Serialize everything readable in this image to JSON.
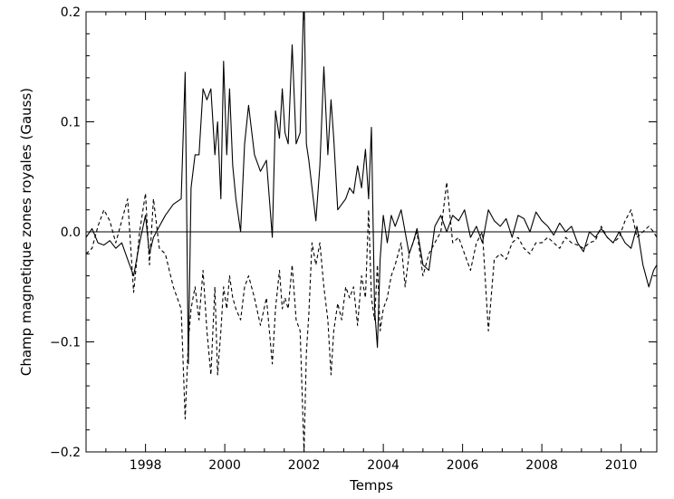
{
  "chart_data": {
    "type": "line",
    "xlabel": "Temps",
    "ylabel": "Champ magnetique zones royales (Gauss)",
    "xlim": [
      1996.5,
      2010.9
    ],
    "ylim": [
      -0.2,
      0.2
    ],
    "grid": false,
    "zero_line": true,
    "xticks": [
      1998,
      2000,
      2002,
      2004,
      2006,
      2008,
      2010
    ],
    "xtick_labels": [
      "1998",
      "2000",
      "2002",
      "2004",
      "2006",
      "2008",
      "2010"
    ],
    "yticks": [
      -0.2,
      -0.1,
      0.0,
      0.1,
      0.2
    ],
    "ytick_labels": [
      "−0.2",
      "−0.1",
      "0.0",
      "0.1",
      "0.2"
    ],
    "series": [
      {
        "style": "solid",
        "color": "#000000",
        "x": [
          1996.5,
          1996.65,
          1996.8,
          1996.95,
          1997.1,
          1997.25,
          1997.4,
          1997.55,
          1997.7,
          1997.85,
          1998.0,
          1998.1,
          1998.2,
          1998.35,
          1998.5,
          1998.7,
          1998.9,
          1999.0,
          1999.08,
          1999.15,
          1999.25,
          1999.35,
          1999.45,
          1999.55,
          1999.65,
          1999.75,
          1999.82,
          1999.9,
          1999.97,
          2000.05,
          2000.12,
          2000.2,
          2000.28,
          2000.4,
          2000.5,
          2000.6,
          2000.75,
          2000.9,
          2001.05,
          2001.2,
          2001.28,
          2001.38,
          2001.45,
          2001.52,
          2001.6,
          2001.7,
          2001.8,
          2001.9,
          2002.0,
          2002.06,
          2002.12,
          2002.2,
          2002.3,
          2002.4,
          2002.5,
          2002.6,
          2002.68,
          2002.75,
          2002.85,
          2002.95,
          2003.05,
          2003.15,
          2003.25,
          2003.35,
          2003.45,
          2003.55,
          2003.63,
          2003.7,
          2003.78,
          2003.85,
          2003.92,
          2004.0,
          2004.1,
          2004.2,
          2004.3,
          2004.45,
          2004.55,
          2004.65,
          2004.75,
          2004.85,
          2005.0,
          2005.15,
          2005.3,
          2005.45,
          2005.6,
          2005.75,
          2005.9,
          2006.05,
          2006.2,
          2006.35,
          2006.5,
          2006.65,
          2006.8,
          2006.95,
          2007.1,
          2007.25,
          2007.4,
          2007.55,
          2007.7,
          2007.85,
          2008.0,
          2008.15,
          2008.3,
          2008.45,
          2008.6,
          2008.75,
          2008.9,
          2009.05,
          2009.2,
          2009.35,
          2009.5,
          2009.65,
          2009.8,
          2009.95,
          2010.1,
          2010.25,
          2010.4,
          2010.55,
          2010.7,
          2010.82,
          2010.9
        ],
        "y": [
          -0.005,
          0.003,
          -0.01,
          -0.012,
          -0.008,
          -0.015,
          -0.01,
          -0.025,
          -0.04,
          -0.01,
          0.015,
          -0.02,
          -0.005,
          0.005,
          0.015,
          0.025,
          0.03,
          0.145,
          -0.12,
          0.04,
          0.07,
          0.07,
          0.13,
          0.12,
          0.13,
          0.07,
          0.1,
          0.03,
          0.155,
          0.07,
          0.13,
          0.06,
          0.03,
          0.0,
          0.08,
          0.115,
          0.07,
          0.055,
          0.065,
          -0.005,
          0.11,
          0.085,
          0.13,
          0.09,
          0.08,
          0.17,
          0.08,
          0.09,
          0.22,
          0.08,
          0.065,
          0.04,
          0.01,
          0.06,
          0.15,
          0.07,
          0.12,
          0.085,
          0.02,
          0.025,
          0.03,
          0.04,
          0.035,
          0.06,
          0.04,
          0.075,
          0.03,
          0.095,
          -0.07,
          -0.105,
          -0.025,
          0.015,
          -0.01,
          0.015,
          0.005,
          0.02,
          0.0,
          -0.02,
          -0.01,
          0.003,
          -0.03,
          -0.035,
          0.005,
          0.015,
          0.0,
          0.015,
          0.01,
          0.02,
          -0.005,
          0.005,
          -0.01,
          0.02,
          0.01,
          0.005,
          0.012,
          -0.005,
          0.015,
          0.012,
          0.0,
          0.018,
          0.01,
          0.005,
          -0.003,
          0.008,
          0.0,
          0.005,
          -0.01,
          -0.018,
          0.0,
          -0.005,
          0.003,
          -0.005,
          -0.01,
          0.0,
          -0.01,
          -0.015,
          0.005,
          -0.03,
          -0.05,
          -0.035,
          -0.03
        ]
      },
      {
        "style": "dashed",
        "color": "#000000",
        "x": [
          1996.5,
          1996.65,
          1996.8,
          1996.95,
          1997.1,
          1997.25,
          1997.4,
          1997.55,
          1997.7,
          1997.85,
          1998.0,
          1998.1,
          1998.2,
          1998.35,
          1998.5,
          1998.7,
          1998.9,
          1999.0,
          1999.08,
          1999.15,
          1999.25,
          1999.35,
          1999.45,
          1999.55,
          1999.65,
          1999.75,
          1999.82,
          1999.9,
          1999.97,
          2000.05,
          2000.12,
          2000.2,
          2000.28,
          2000.4,
          2000.5,
          2000.6,
          2000.75,
          2000.9,
          2001.05,
          2001.2,
          2001.28,
          2001.38,
          2001.45,
          2001.52,
          2001.6,
          2001.7,
          2001.8,
          2001.9,
          2002.0,
          2002.06,
          2002.12,
          2002.2,
          2002.3,
          2002.4,
          2002.5,
          2002.6,
          2002.68,
          2002.75,
          2002.85,
          2002.95,
          2003.05,
          2003.15,
          2003.25,
          2003.35,
          2003.45,
          2003.55,
          2003.63,
          2003.7,
          2003.78,
          2003.85,
          2003.92,
          2004.0,
          2004.1,
          2004.2,
          2004.3,
          2004.45,
          2004.55,
          2004.65,
          2004.75,
          2004.85,
          2005.0,
          2005.15,
          2005.3,
          2005.45,
          2005.6,
          2005.75,
          2005.9,
          2006.05,
          2006.2,
          2006.35,
          2006.5,
          2006.65,
          2006.8,
          2006.95,
          2007.1,
          2007.25,
          2007.4,
          2007.55,
          2007.7,
          2007.85,
          2008.0,
          2008.15,
          2008.3,
          2008.45,
          2008.6,
          2008.75,
          2008.9,
          2009.05,
          2009.2,
          2009.35,
          2009.5,
          2009.65,
          2009.8,
          2009.95,
          2010.1,
          2010.25,
          2010.4,
          2010.55,
          2010.7,
          2010.82,
          2010.9
        ],
        "y": [
          -0.02,
          -0.015,
          0.005,
          0.02,
          0.01,
          -0.01,
          0.01,
          0.03,
          -0.055,
          0.0,
          0.035,
          -0.03,
          0.03,
          -0.015,
          -0.02,
          -0.05,
          -0.07,
          -0.17,
          -0.1,
          -0.07,
          -0.05,
          -0.08,
          -0.035,
          -0.09,
          -0.13,
          -0.05,
          -0.13,
          -0.09,
          -0.05,
          -0.07,
          -0.04,
          -0.06,
          -0.07,
          -0.08,
          -0.05,
          -0.04,
          -0.06,
          -0.085,
          -0.06,
          -0.12,
          -0.07,
          -0.035,
          -0.07,
          -0.06,
          -0.07,
          -0.03,
          -0.08,
          -0.09,
          -0.2,
          -0.11,
          -0.075,
          -0.01,
          -0.03,
          -0.01,
          -0.05,
          -0.08,
          -0.13,
          -0.09,
          -0.065,
          -0.08,
          -0.05,
          -0.06,
          -0.05,
          -0.085,
          -0.04,
          -0.06,
          0.02,
          -0.06,
          -0.08,
          -0.03,
          -0.09,
          -0.07,
          -0.06,
          -0.04,
          -0.03,
          -0.01,
          -0.05,
          -0.02,
          -0.01,
          0.0,
          -0.04,
          -0.02,
          -0.01,
          0.0,
          0.045,
          -0.01,
          -0.005,
          -0.02,
          -0.035,
          -0.01,
          0.0,
          -0.09,
          -0.025,
          -0.02,
          -0.025,
          -0.01,
          -0.005,
          -0.015,
          -0.02,
          -0.01,
          -0.01,
          -0.005,
          -0.01,
          -0.015,
          -0.005,
          -0.01,
          -0.012,
          -0.015,
          -0.01,
          -0.008,
          0.005,
          -0.005,
          -0.01,
          -0.005,
          0.01,
          0.02,
          -0.005,
          0.0,
          0.005,
          0.0,
          -0.005
        ]
      }
    ]
  }
}
